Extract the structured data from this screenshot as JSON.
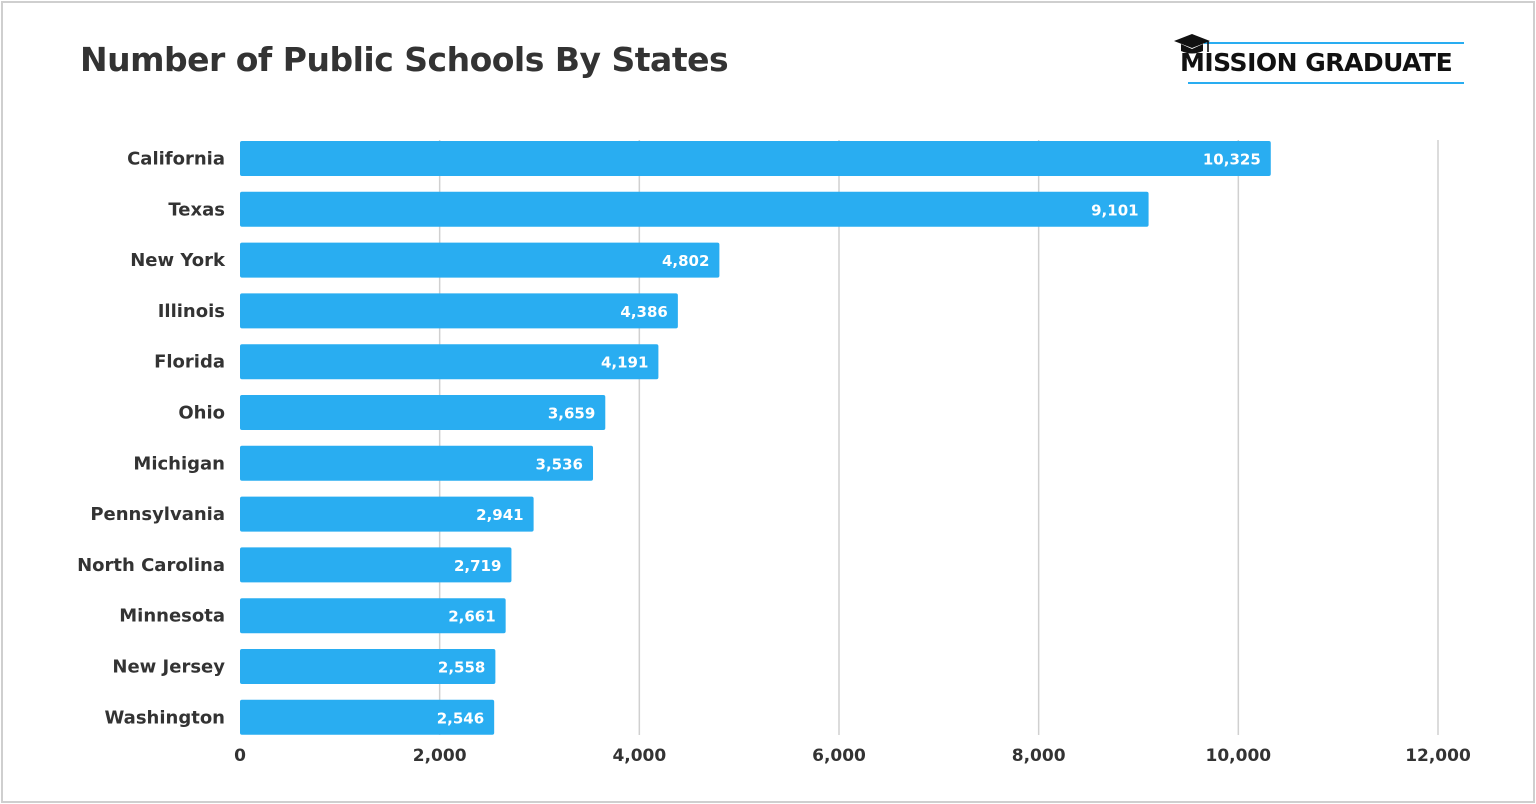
{
  "header": {
    "title": "Number of Public Schools By States",
    "logo_text": "MISSION GRADUATE"
  },
  "colors": {
    "bar": "#29adf1",
    "grid": "#d0d0d0",
    "accent": "#29adf1",
    "text": "#333333"
  },
  "icons": {
    "logo": "graduation-cap-icon"
  },
  "chart_data": {
    "type": "bar",
    "orientation": "horizontal",
    "title": "Number of Public Schools By States",
    "xlabel": "",
    "ylabel": "",
    "categories": [
      "California",
      "Texas",
      "New York",
      "Illinois",
      "Florida",
      "Ohio",
      "Michigan",
      "Pennsylvania",
      "North Carolina",
      "Minnesota",
      "New Jersey",
      "Washington"
    ],
    "values": [
      10325,
      9101,
      4802,
      4386,
      4191,
      3659,
      3536,
      2941,
      2719,
      2661,
      2558,
      2546
    ],
    "value_labels": [
      "10,325",
      "9,101",
      "4,802",
      "4,386",
      "4,191",
      "3,659",
      "3,536",
      "2,941",
      "2,719",
      "2,661",
      "2,558",
      "2,546"
    ],
    "xlim": [
      0,
      12000
    ],
    "xticks": [
      0,
      2000,
      4000,
      6000,
      8000,
      10000,
      12000
    ],
    "xtick_labels": [
      "0",
      "2,000",
      "4,000",
      "6,000",
      "8,000",
      "10,000",
      "12,000"
    ],
    "grid": true,
    "legend": "none"
  }
}
